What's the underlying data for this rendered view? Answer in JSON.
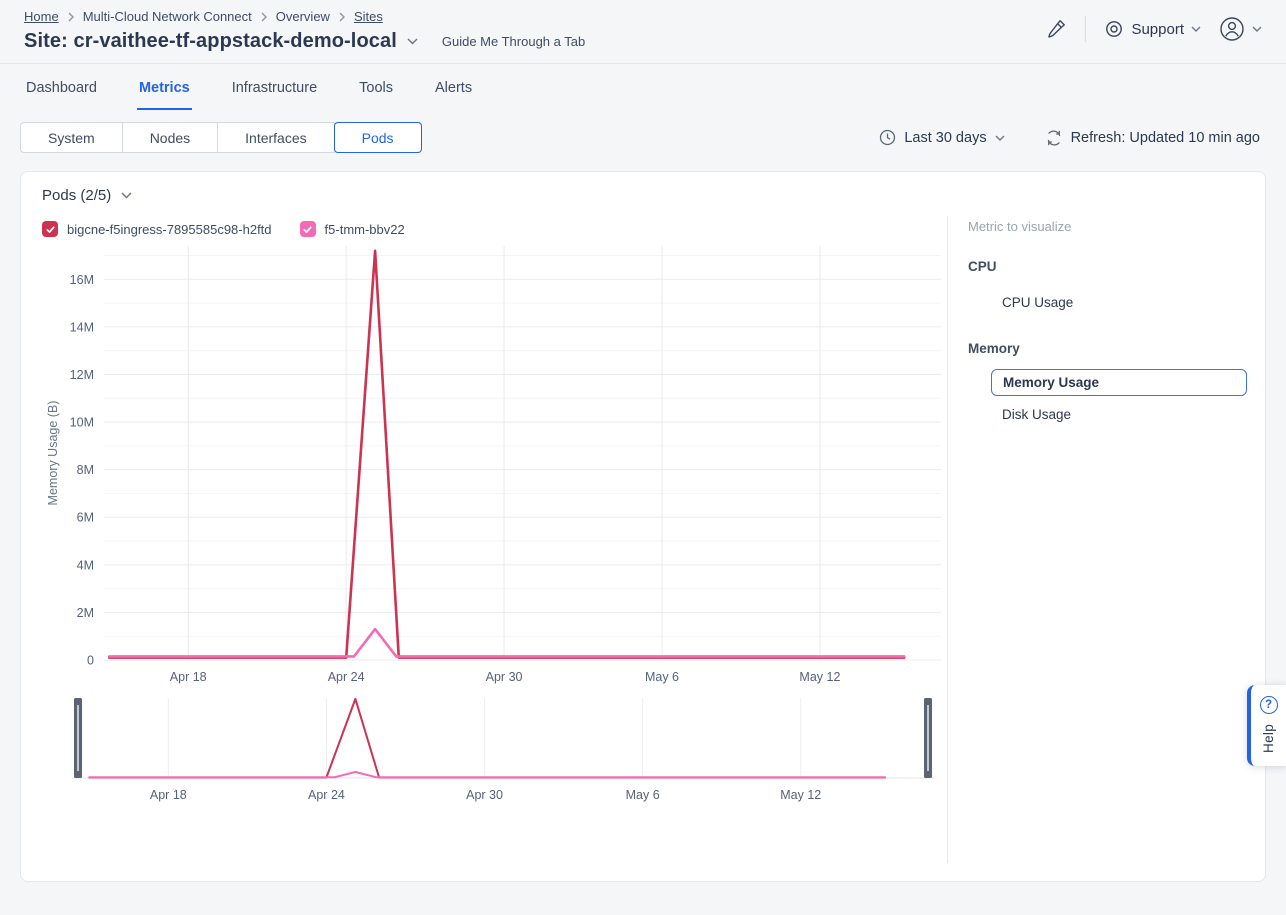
{
  "breadcrumb": [
    "Home",
    "Multi-Cloud Network Connect",
    "Overview",
    "Sites"
  ],
  "header": {
    "title": "Site: cr-vaithee-tf-appstack-demo-local",
    "guide_link": "Guide Me Through a Tab",
    "support_label": "Support"
  },
  "icons": {
    "edit": "paintbrush-icon",
    "support": "lifebuoy-icon",
    "account": "user-circle-icon",
    "time": "clock-icon",
    "refresh": "refresh-arrows-icon",
    "help": "question-circle-icon",
    "chevron": "chevron-down-icon"
  },
  "tabs": [
    "Dashboard",
    "Metrics",
    "Infrastructure",
    "Tools",
    "Alerts"
  ],
  "active_tab": "Metrics",
  "subnav": {
    "options": [
      "System",
      "Nodes",
      "Interfaces",
      "Pods"
    ],
    "selected": "Pods"
  },
  "controls": {
    "time_range": "Last 30 days",
    "refresh_label": "Refresh: Updated 10 min ago"
  },
  "panel": {
    "title": "Pods (2/5)"
  },
  "legend": [
    {
      "label": "bigcne-f5ingress-7895585c98-h2ftd",
      "color": "#cb3351",
      "checked": true
    },
    {
      "label": "f5-tmm-bbv22",
      "color": "#f56ab5",
      "checked": true
    }
  ],
  "metric_picker": {
    "title": "Metric to visualize",
    "groups": [
      {
        "name": "CPU",
        "options": [
          {
            "label": "CPU Usage",
            "selected": false
          }
        ]
      },
      {
        "name": "Memory",
        "options": [
          {
            "label": "Memory Usage",
            "selected": true
          },
          {
            "label": "Disk Usage",
            "selected": false
          }
        ]
      }
    ]
  },
  "help": {
    "label": "Help"
  },
  "colors": {
    "accent_blue": "#2264e5",
    "series_red": "#cb3351",
    "series_pink": "#f56ab5",
    "grid_major": "#e9ebef",
    "grid_minor": "#f2f4f6",
    "axis_text": "#55607a",
    "brush_handle": "#5b6472"
  },
  "chart_data": {
    "type": "line",
    "title": "Pods (2/5)",
    "ylabel": "Memory Usage (B)",
    "y_unit": "bytes",
    "y_plot_max": 17400000,
    "y_minor_step": 1000000,
    "y_ticks": [
      {
        "label": "0",
        "value": 0
      },
      {
        "label": "2M",
        "value": 2000000
      },
      {
        "label": "4M",
        "value": 4000000
      },
      {
        "label": "6M",
        "value": 6000000
      },
      {
        "label": "8M",
        "value": 8000000
      },
      {
        "label": "10M",
        "value": 10000000
      },
      {
        "label": "12M",
        "value": 12000000
      },
      {
        "label": "14M",
        "value": 14000000
      },
      {
        "label": "16M",
        "value": 16000000
      }
    ],
    "x_start_date": "Apr 15",
    "x_end_date": "May 15",
    "x_domain_days": [
      -0.2,
      31.6
    ],
    "x_ticks": [
      {
        "label": "Apr 18",
        "day": 3
      },
      {
        "label": "Apr 24",
        "day": 9
      },
      {
        "label": "Apr 30",
        "day": 15
      },
      {
        "label": "May 6",
        "day": 21
      },
      {
        "label": "May 12",
        "day": 27
      }
    ],
    "series": [
      {
        "name": "bigcne-f5ingress-7895585c98-h2ftd",
        "color": "#cb3351",
        "points_day_value": [
          [
            0,
            100000
          ],
          [
            9,
            100000
          ],
          [
            10.1,
            17200000
          ],
          [
            11,
            100000
          ],
          [
            30.2,
            100000
          ]
        ]
      },
      {
        "name": "f5-tmm-bbv22",
        "color": "#f56ab5",
        "points_day_value": [
          [
            0,
            150000
          ],
          [
            9.3,
            150000
          ],
          [
            10.1,
            1300000
          ],
          [
            10.9,
            150000
          ],
          [
            30.2,
            150000
          ]
        ]
      }
    ],
    "brush": {
      "selection": "full range",
      "handles": [
        "left",
        "right"
      ]
    },
    "legend_position": "top-left",
    "grid": true
  }
}
